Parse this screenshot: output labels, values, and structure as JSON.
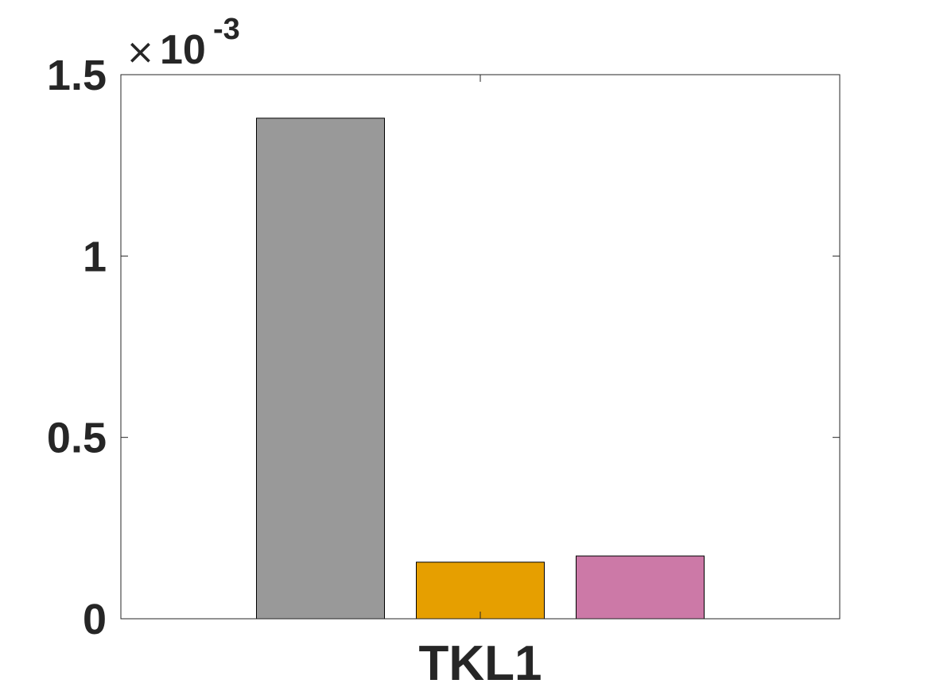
{
  "chart_data": {
    "type": "bar",
    "categories": [
      "TKL1"
    ],
    "series": [
      {
        "values": [
          0.00138
        ],
        "color": "#999999"
      },
      {
        "values": [
          0.000156
        ],
        "color": "#E69F00"
      },
      {
        "values": [
          0.000173
        ],
        "color": "#CC79A7"
      }
    ],
    "ylim": [
      0,
      0.0015
    ],
    "yticks": [
      0,
      0.0005,
      0.001,
      0.0015
    ],
    "ytick_labels": [
      "0",
      "0.5",
      "1",
      "1.5"
    ],
    "exponent": {
      "times": "×",
      "base": "10",
      "power": "-3"
    },
    "grid": false,
    "box": true,
    "title": "",
    "xlabel": "",
    "ylabel": ""
  }
}
